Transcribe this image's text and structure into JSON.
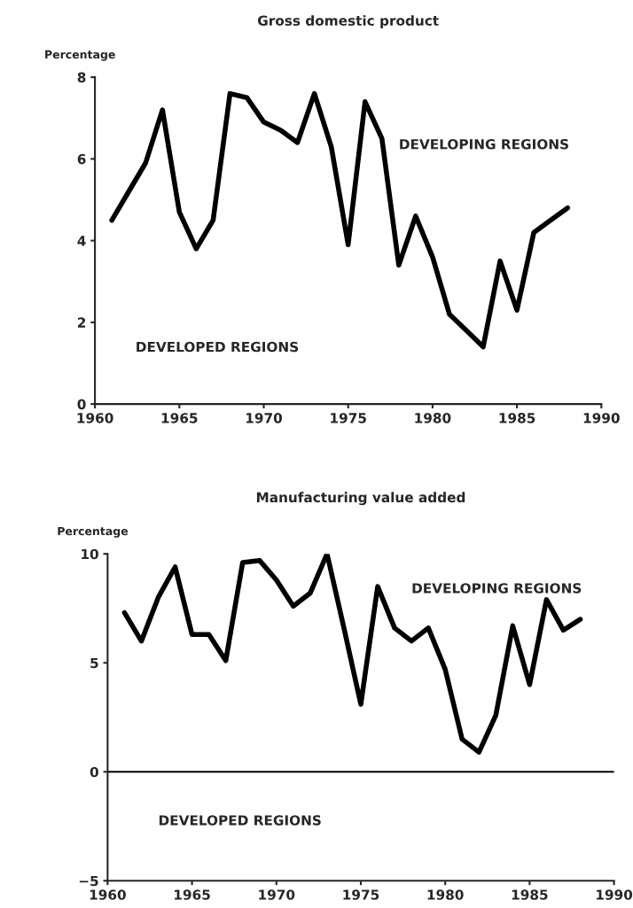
{
  "chart_data": [
    {
      "type": "line",
      "title": "Gross domestic product",
      "ylabel": "Percentage",
      "x": [
        1961,
        1962,
        1963,
        1964,
        1965,
        1966,
        1967,
        1968,
        1969,
        1970,
        1971,
        1972,
        1973,
        1974,
        1975,
        1976,
        1977,
        1978,
        1979,
        1980,
        1981,
        1982,
        1983,
        1984,
        1985,
        1986,
        1987,
        1988
      ],
      "series": [
        {
          "color": "#000000",
          "values": [
            4.5,
            5.2,
            5.9,
            7.2,
            4.7,
            3.8,
            4.5,
            7.6,
            7.5,
            6.9,
            6.7,
            6.4,
            7.6,
            6.3,
            3.9,
            7.4,
            6.5,
            3.4,
            4.6,
            3.6,
            2.2,
            1.8,
            1.4,
            3.5,
            2.3,
            4.2,
            4.5,
            4.8
          ]
        }
      ],
      "xlim": [
        1960,
        1990
      ],
      "xticks": [
        1960,
        1965,
        1970,
        1975,
        1980,
        1985,
        1990
      ],
      "ylim": [
        0,
        8
      ],
      "yticks": [
        0,
        2,
        4,
        6,
        8
      ],
      "annotations": [
        "DEVELOPING REGIONS",
        "DEVELOPED REGIONS"
      ]
    },
    {
      "type": "line",
      "title": "Manufacturing value added",
      "ylabel": "Percentage",
      "x": [
        1961,
        1962,
        1963,
        1964,
        1965,
        1966,
        1967,
        1968,
        1969,
        1970,
        1971,
        1972,
        1973,
        1974,
        1975,
        1976,
        1977,
        1978,
        1979,
        1980,
        1981,
        1982,
        1983,
        1984,
        1985,
        1986,
        1987,
        1988
      ],
      "series": [
        {
          "color": "#000000",
          "values": [
            7.3,
            6.0,
            8.0,
            9.4,
            6.3,
            6.3,
            5.1,
            9.6,
            9.7,
            8.8,
            7.6,
            8.2,
            10.0,
            6.6,
            3.1,
            8.5,
            6.6,
            6.0,
            6.6,
            4.7,
            1.5,
            0.9,
            2.6,
            6.7,
            4.0,
            7.9,
            6.5,
            7.0
          ]
        }
      ],
      "xlim": [
        1960,
        1990
      ],
      "xticks": [
        1960,
        1965,
        1970,
        1975,
        1980,
        1985,
        1990
      ],
      "ylim": [
        -5,
        10
      ],
      "yticks": [
        {
          "value": -5,
          "label": "−5"
        },
        0,
        5,
        10
      ],
      "ref_lines": [
        {
          "axis": "y",
          "value": 0,
          "color": "#000000"
        }
      ],
      "annotations": [
        "DEVELOPING REGIONS",
        "DEVELOPED REGIONS"
      ]
    }
  ]
}
